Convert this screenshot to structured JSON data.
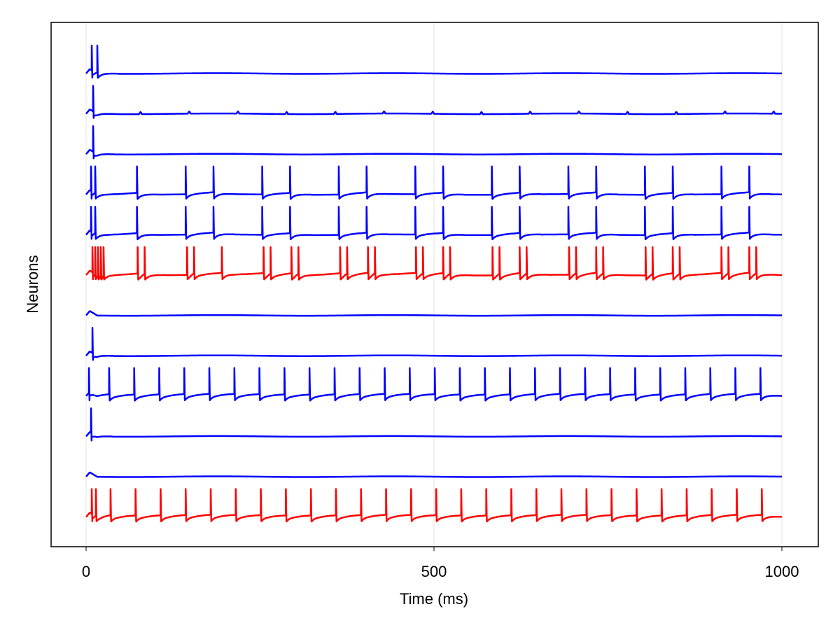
{
  "chart_data": {
    "type": "line",
    "title": "",
    "xlabel": "Time (ms)",
    "ylabel": "Neurons",
    "xlim": [
      -50,
      1050
    ],
    "x_ticks": [
      0,
      500,
      1000
    ],
    "x_tick_labels": [
      "0",
      "500",
      "1000"
    ],
    "grid": "vertical",
    "legend": "none",
    "colors": {
      "excitatory": "#0000ff",
      "inhibitory": "#ff0000",
      "grid": "#e6e6e6",
      "frame": "#000000"
    },
    "series": [
      {
        "color": "#0000ff",
        "spikes": [
          8,
          16
        ],
        "subthreshold_period": 0,
        "initial_burst": true
      },
      {
        "color": "#0000ff",
        "spikes": [
          10
        ],
        "subthreshold_period": 70
      },
      {
        "color": "#0000ff",
        "spikes": [
          10
        ],
        "subthreshold_period": 0
      },
      {
        "color": "#0000ff",
        "spikes": [
          7,
          13,
          73,
          143,
          183,
          253,
          293,
          363,
          403,
          473,
          513,
          583,
          623,
          693,
          733,
          803,
          843,
          913,
          953
        ]
      },
      {
        "color": "#0000ff",
        "spikes": [
          7,
          13,
          73,
          143,
          183,
          253,
          293,
          363,
          403,
          473,
          513,
          583,
          623,
          693,
          733,
          803,
          843,
          913,
          953
        ]
      },
      {
        "color": "#ff0000",
        "spikes": [
          9,
          13,
          17,
          21,
          25,
          74,
          84,
          145,
          155,
          195,
          255,
          265,
          295,
          305,
          365,
          375,
          405,
          415,
          474,
          484,
          513,
          523,
          584,
          594,
          623,
          633,
          694,
          704,
          733,
          743,
          804,
          814,
          843,
          853,
          913,
          923,
          953,
          963
        ]
      },
      {
        "color": "#0000ff",
        "spikes": [],
        "subthreshold_period": 0
      },
      {
        "color": "#0000ff",
        "spikes": [
          9
        ],
        "subthreshold_period": 0
      },
      {
        "color": "#0000ff",
        "spikes": [
          4,
          33,
          69,
          105,
          141,
          177,
          213,
          249,
          285,
          321,
          357,
          393,
          429,
          465,
          501,
          537,
          573,
          609,
          645,
          681,
          717,
          753,
          789,
          825,
          861,
          897,
          933,
          969
        ]
      },
      {
        "color": "#0000ff",
        "spikes": [
          7
        ],
        "subthreshold_period": 0
      },
      {
        "color": "#0000ff",
        "spikes": [],
        "subthreshold_period": 0
      },
      {
        "color": "#ff0000",
        "spikes": [
          8,
          14,
          35,
          71,
          107,
          143,
          179,
          215,
          251,
          287,
          323,
          359,
          395,
          431,
          467,
          503,
          539,
          575,
          611,
          647,
          683,
          719,
          755,
          791,
          827,
          863,
          899,
          935,
          971
        ]
      }
    ]
  }
}
